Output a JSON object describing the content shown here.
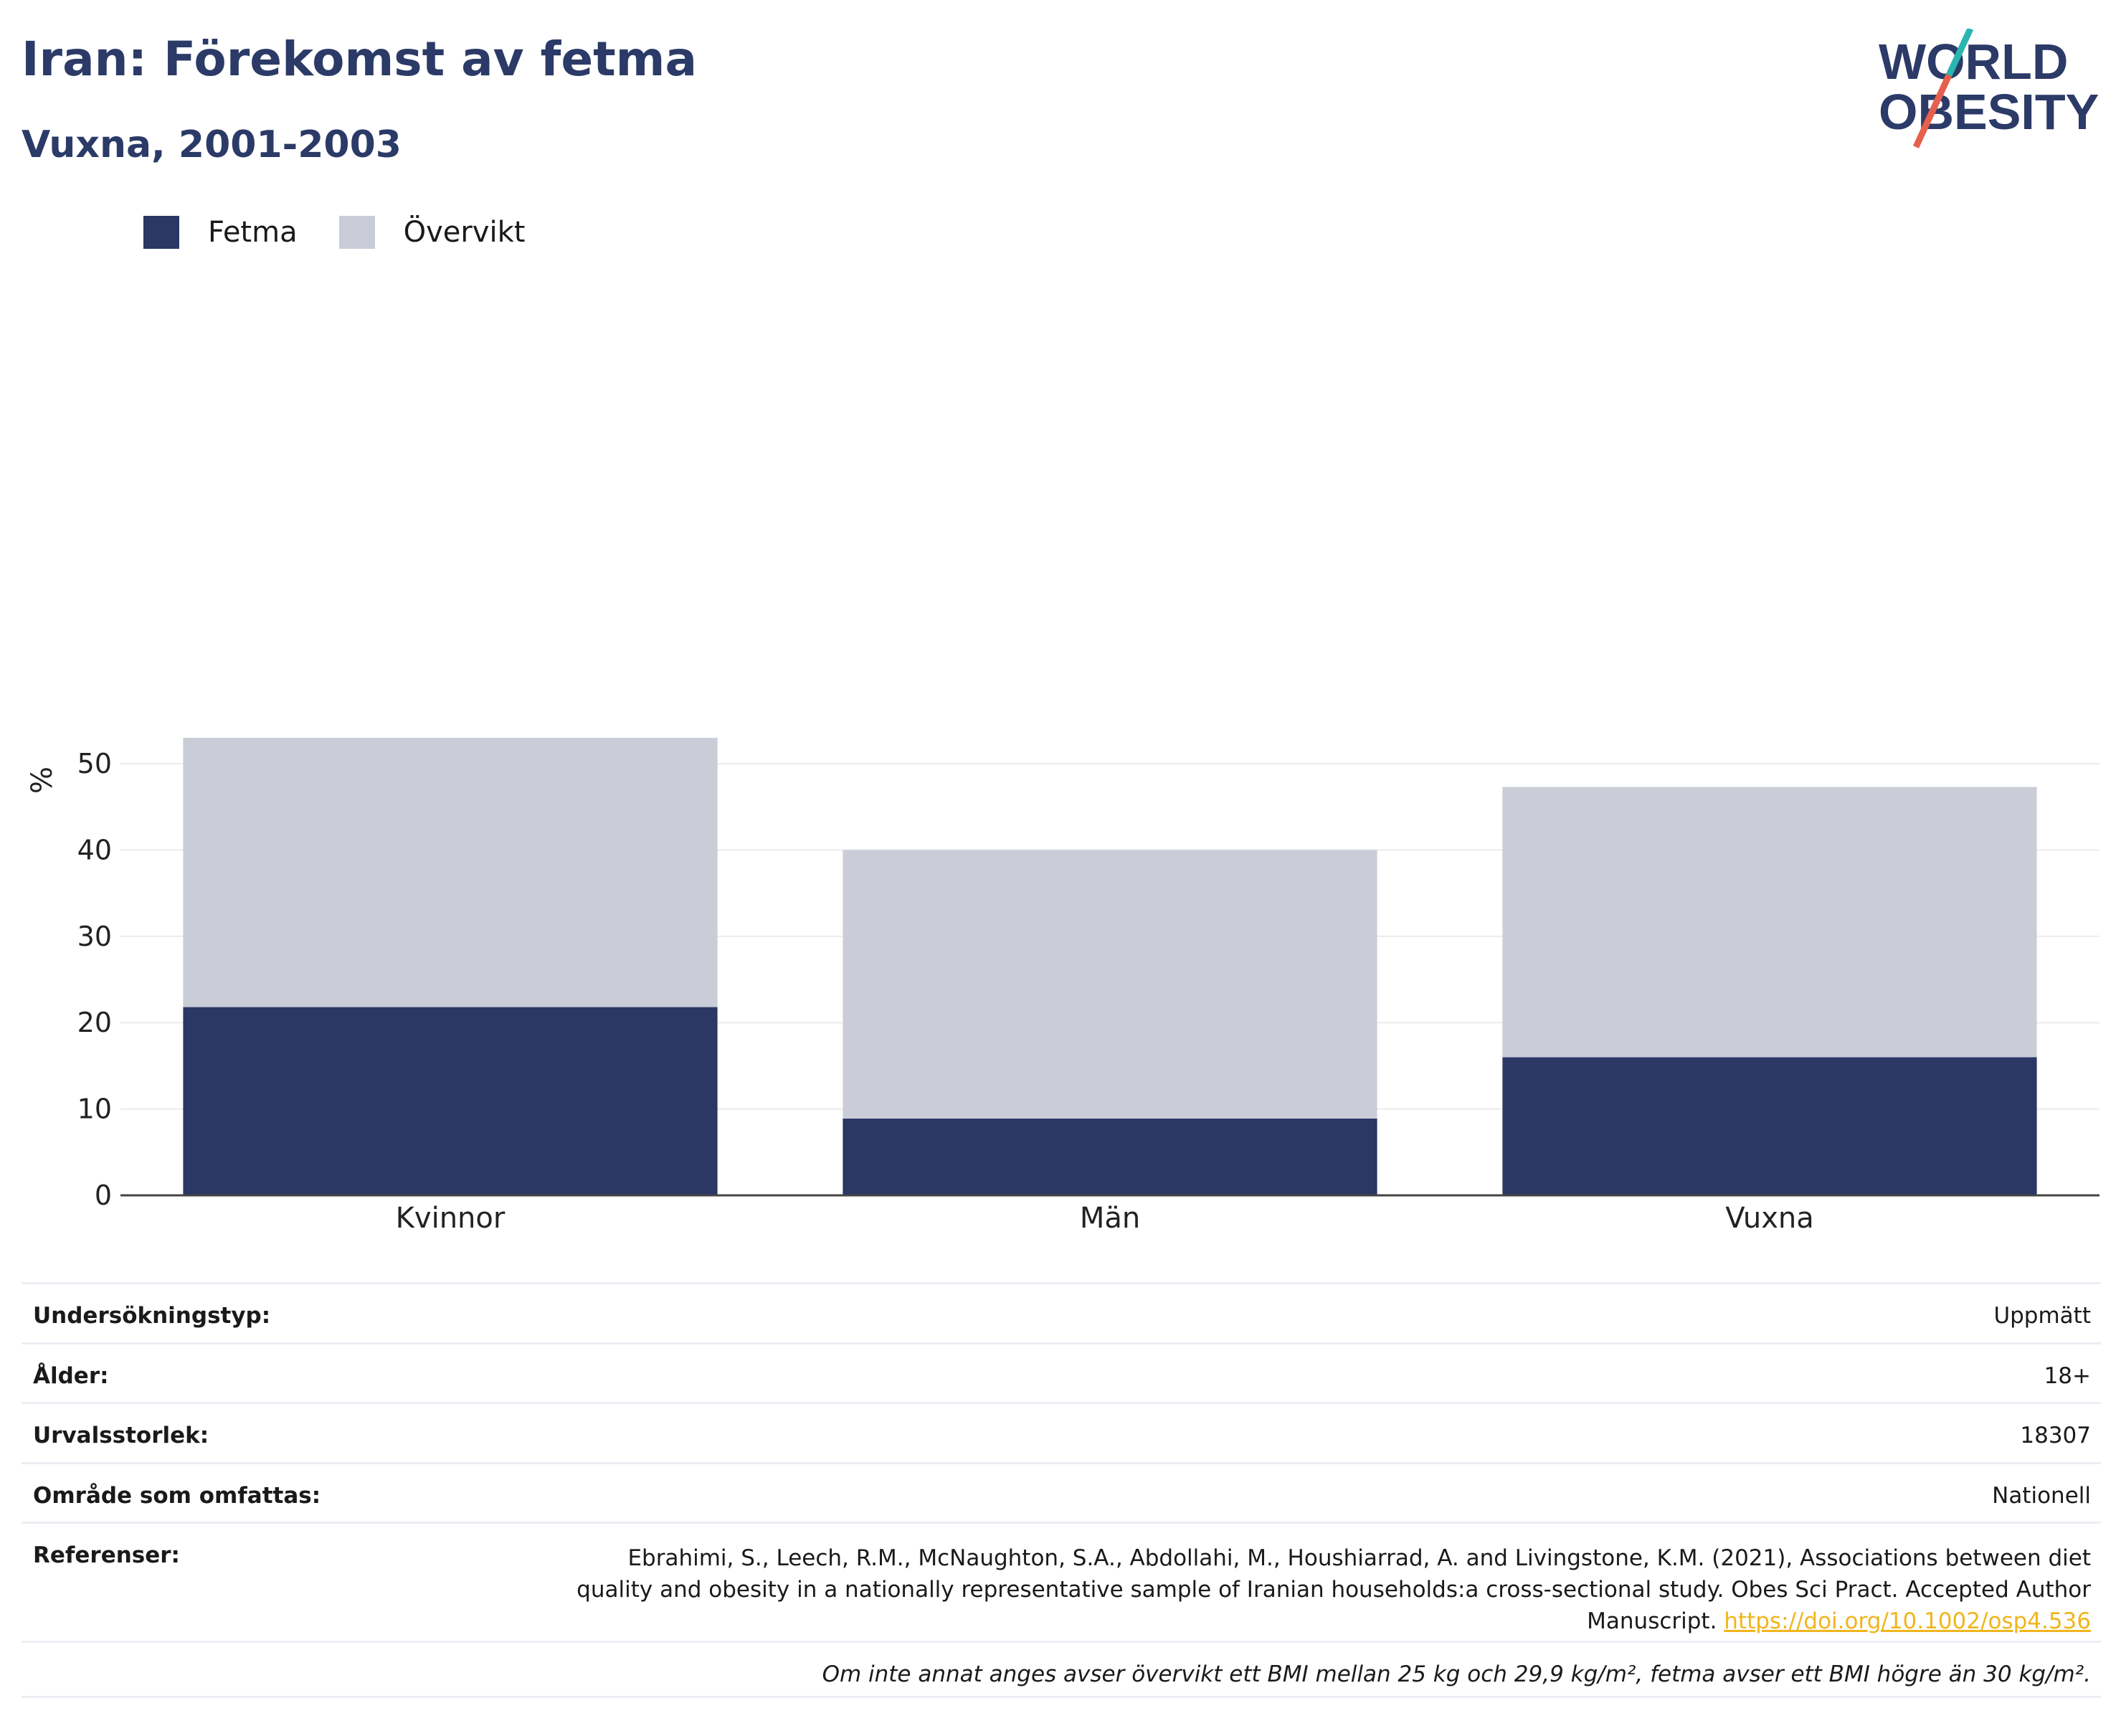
{
  "header": {
    "title": "Iran: Förekomst av fetma",
    "subtitle": "Vuxna, 2001-2003"
  },
  "logo": {
    "line1": "WORLD",
    "line2": "OBESITY"
  },
  "colors": {
    "fetma": "#2b3764",
    "overvikt": "#cacdd8",
    "accent_teal": "#2ab5b0",
    "accent_red": "#e5604f",
    "brand_blue": "#2b3a67",
    "link": "#f1b51c"
  },
  "legend": {
    "fetma": "Fetma",
    "overvikt": "Övervikt"
  },
  "chart_data": {
    "type": "bar",
    "stacked": true,
    "categories": [
      "Kvinnor",
      "Män",
      "Vuxna"
    ],
    "series": [
      {
        "name": "Fetma",
        "values": [
          21.8,
          8.9,
          16.0
        ]
      },
      {
        "name": "Övervikt",
        "values": [
          31.2,
          31.1,
          31.3
        ]
      }
    ],
    "ylabel": "%",
    "ylim": [
      0,
      55
    ],
    "yticks": [
      0,
      10,
      20,
      30,
      40,
      50
    ],
    "grid": true,
    "legend_position": "top-left"
  },
  "info": {
    "survey_type": {
      "label": "Undersökningstyp:",
      "value": "Uppmätt"
    },
    "age": {
      "label": "Ålder:",
      "value": "18+"
    },
    "sample_size": {
      "label": "Urvalsstorlek:",
      "value": "18307"
    },
    "area": {
      "label": "Område som omfattas:",
      "value": "Nationell"
    },
    "references": {
      "label": "Referenser:",
      "text": "Ebrahimi, S., Leech, R.M., McNaughton, S.A., Abdollahi, M., Houshiarrad, A. and Livingstone, K.M. (2021), Associations between diet quality and obesity in a nationally representative sample of Iranian households:a cross-sectional study. Obes Sci Pract. Accepted Author Manuscript.",
      "doi": "https://doi.org/10.1002/osp4.536"
    },
    "note": "Om inte annat anges avser övervikt ett BMI mellan 25 kg och 29,9 kg/m², fetma avser ett BMI högre än 30 kg/m²."
  }
}
